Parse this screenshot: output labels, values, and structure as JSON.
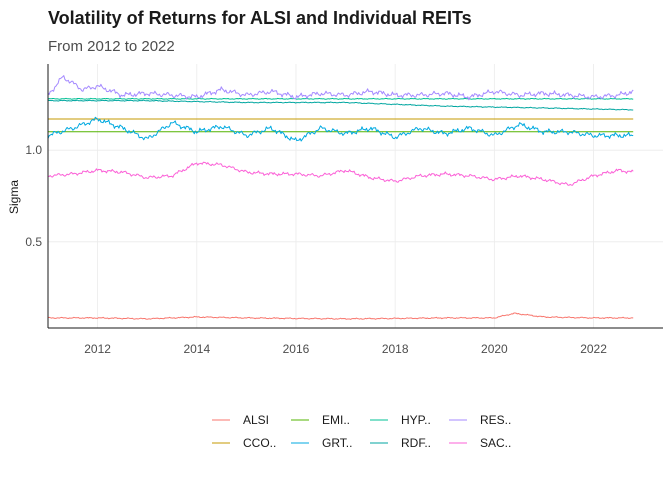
{
  "chart_data": {
    "type": "line",
    "title": "Volatility of Returns for ALSI and Individual REITs",
    "subtitle": "From 2012 to 2022",
    "xlabel": "",
    "ylabel": "Sigma",
    "xlim": [
      2011.0,
      2023.4
    ],
    "ylim": [
      0.03,
      1.47
    ],
    "x_ticks": [
      2012,
      2014,
      2016,
      2018,
      2020,
      2022
    ],
    "x_tick_labels": [
      "2012",
      "2014",
      "2016",
      "2018",
      "2020",
      "2022"
    ],
    "y_ticks": [
      0.5,
      1.0
    ],
    "y_tick_labels": [
      "0.5",
      "1.0"
    ],
    "grid": true,
    "legend_position": "bottom",
    "series": [
      {
        "name": "ALSI",
        "color": "#F8766D",
        "x": [
          2011.0,
          2012.0,
          2013.0,
          2014.0,
          2015.0,
          2016.0,
          2017.0,
          2018.0,
          2019.0,
          2020.0,
          2020.4,
          2021.0,
          2022.0,
          2022.8
        ],
        "values": [
          0.085,
          0.085,
          0.08,
          0.09,
          0.085,
          0.082,
          0.08,
          0.082,
          0.085,
          0.085,
          0.11,
          0.09,
          0.085,
          0.085
        ]
      },
      {
        "name": "CCO..",
        "color": "#C49A00",
        "x": [
          2011.0,
          2022.8
        ],
        "values": [
          1.17,
          1.17
        ]
      },
      {
        "name": "EMI..",
        "color": "#53B400",
        "x": [
          2011.0,
          2022.8
        ],
        "values": [
          1.1,
          1.1
        ]
      },
      {
        "name": "GRT..",
        "color": "#00A9E0",
        "x": [
          2011.0,
          2011.5,
          2012.0,
          2012.5,
          2013.0,
          2013.5,
          2014.0,
          2014.5,
          2015.0,
          2015.5,
          2016.0,
          2016.5,
          2017.0,
          2017.5,
          2018.0,
          2018.5,
          2019.0,
          2019.5,
          2020.0,
          2020.5,
          2021.0,
          2021.5,
          2022.0,
          2022.5,
          2022.8
        ],
        "values": [
          1.08,
          1.12,
          1.17,
          1.12,
          1.06,
          1.15,
          1.1,
          1.13,
          1.08,
          1.12,
          1.05,
          1.12,
          1.09,
          1.12,
          1.07,
          1.12,
          1.09,
          1.12,
          1.08,
          1.14,
          1.1,
          1.1,
          1.08,
          1.08,
          1.08
        ]
      },
      {
        "name": "HYP..",
        "color": "#00C094",
        "x": [
          2011.0,
          2022.8
        ],
        "values": [
          1.28,
          1.28
        ]
      },
      {
        "name": "RDF..",
        "color": "#00A6A0",
        "x": [
          2011.0,
          2013.0,
          2015.0,
          2017.0,
          2019.0,
          2021.0,
          2022.8
        ],
        "values": [
          1.27,
          1.27,
          1.26,
          1.26,
          1.24,
          1.23,
          1.22
        ]
      },
      {
        "name": "RES..",
        "color": "#A58AFF",
        "x": [
          2011.0,
          2011.3,
          2011.7,
          2012.0,
          2012.5,
          2013.0,
          2013.5,
          2014.0,
          2014.5,
          2015.0,
          2015.5,
          2016.0,
          2016.5,
          2017.0,
          2017.5,
          2018.0,
          2018.5,
          2019.0,
          2019.5,
          2020.0,
          2020.5,
          2021.0,
          2021.5,
          2022.0,
          2022.5,
          2022.8
        ],
        "values": [
          1.3,
          1.4,
          1.33,
          1.35,
          1.3,
          1.31,
          1.3,
          1.29,
          1.33,
          1.3,
          1.32,
          1.29,
          1.31,
          1.3,
          1.32,
          1.3,
          1.3,
          1.31,
          1.29,
          1.32,
          1.3,
          1.31,
          1.3,
          1.29,
          1.3,
          1.32
        ]
      },
      {
        "name": "SAC..",
        "color": "#FB61D7",
        "x": [
          2011.0,
          2011.5,
          2012.0,
          2012.5,
          2013.0,
          2013.5,
          2014.0,
          2014.5,
          2015.0,
          2015.5,
          2016.0,
          2016.5,
          2017.0,
          2017.5,
          2018.0,
          2018.5,
          2019.0,
          2019.5,
          2020.0,
          2020.5,
          2021.0,
          2021.5,
          2022.0,
          2022.5,
          2022.8
        ],
        "values": [
          0.86,
          0.87,
          0.89,
          0.88,
          0.85,
          0.86,
          0.93,
          0.92,
          0.88,
          0.87,
          0.87,
          0.86,
          0.89,
          0.85,
          0.83,
          0.86,
          0.87,
          0.86,
          0.84,
          0.86,
          0.84,
          0.81,
          0.86,
          0.89,
          0.88
        ]
      }
    ]
  }
}
